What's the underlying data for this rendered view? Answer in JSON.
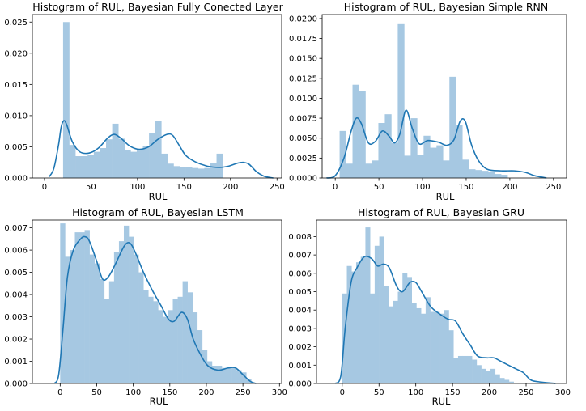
{
  "figure": {
    "bar_color": "#a6c8e2",
    "kde_color": "#1f77b4"
  },
  "chart_data": [
    {
      "type": "bar",
      "title": "Histogram of RUL, Bayesian Fully Conected Layer",
      "xlabel": "RUL",
      "ylabel": "",
      "xlim": [
        -13,
        255
      ],
      "ylim": [
        0,
        0.0262
      ],
      "xticks": [
        0,
        50,
        100,
        150,
        200,
        250
      ],
      "yticks": [
        0.0,
        0.005,
        0.01,
        0.015,
        0.02,
        0.025
      ],
      "ytick_labels": [
        "0.000",
        "0.005",
        "0.010",
        "0.015",
        "0.020",
        "0.025"
      ],
      "bin_start": 20,
      "bin_width": 6.6,
      "values": [
        0.025,
        0.0053,
        0.0035,
        0.0035,
        0.0037,
        0.0042,
        0.0048,
        0.0062,
        0.0087,
        0.0063,
        0.0045,
        0.0042,
        0.0045,
        0.0051,
        0.0072,
        0.0091,
        0.0039,
        0.0023,
        0.0019,
        0.0018,
        0.0017,
        0.0016,
        0.0015,
        0.0016,
        0.0024,
        0.0039
      ],
      "kde": [
        [
          5,
          0.0002
        ],
        [
          10,
          0.0015
        ],
        [
          15,
          0.0052
        ],
        [
          18,
          0.0082
        ],
        [
          21,
          0.0092
        ],
        [
          24,
          0.0085
        ],
        [
          30,
          0.0058
        ],
        [
          38,
          0.0042
        ],
        [
          48,
          0.004
        ],
        [
          58,
          0.0048
        ],
        [
          68,
          0.0064
        ],
        [
          75,
          0.007
        ],
        [
          82,
          0.0064
        ],
        [
          92,
          0.0051
        ],
        [
          102,
          0.0046
        ],
        [
          112,
          0.005
        ],
        [
          122,
          0.0062
        ],
        [
          132,
          0.007
        ],
        [
          138,
          0.0068
        ],
        [
          145,
          0.0052
        ],
        [
          152,
          0.0036
        ],
        [
          162,
          0.0026
        ],
        [
          175,
          0.0019
        ],
        [
          188,
          0.0017
        ],
        [
          198,
          0.0019
        ],
        [
          208,
          0.0024
        ],
        [
          214,
          0.0025
        ],
        [
          220,
          0.0022
        ],
        [
          228,
          0.001
        ],
        [
          236,
          0.0003
        ],
        [
          246,
          0.0
        ]
      ]
    },
    {
      "type": "bar",
      "title": "Histogram of RUL, Bayesian Simple RNN",
      "xlabel": "RUL",
      "ylabel": "",
      "xlim": [
        -15,
        265
      ],
      "ylim": [
        0,
        0.0205
      ],
      "xticks": [
        0,
        50,
        100,
        150,
        200,
        250
      ],
      "yticks": [
        0.0,
        0.0025,
        0.005,
        0.0075,
        0.01,
        0.0125,
        0.015,
        0.0175,
        0.02
      ],
      "ytick_labels": [
        "0.0000",
        "0.0025",
        "0.0050",
        "0.0075",
        "0.0100",
        "0.0125",
        "0.0150",
        "0.0175",
        "0.0200"
      ],
      "bin_start": 5,
      "bin_width": 7.4,
      "values": [
        0.0059,
        0.0018,
        0.0117,
        0.0109,
        0.0018,
        0.0022,
        0.0069,
        0.008,
        0.0044,
        0.0193,
        0.0028,
        0.0075,
        0.0029,
        0.0053,
        0.0038,
        0.0041,
        0.0022,
        0.0127,
        0.0066,
        0.0023,
        0.0011,
        0.001,
        0.0009,
        0.0008,
        0.0005,
        0.0004,
        0.0
      ],
      "kde": [
        [
          -10,
          0.0
        ],
        [
          0,
          0.0003
        ],
        [
          10,
          0.0025
        ],
        [
          18,
          0.0058
        ],
        [
          24,
          0.0075
        ],
        [
          30,
          0.0068
        ],
        [
          38,
          0.0044
        ],
        [
          46,
          0.0046
        ],
        [
          54,
          0.0059
        ],
        [
          62,
          0.0052
        ],
        [
          68,
          0.0044
        ],
        [
          74,
          0.0055
        ],
        [
          81,
          0.0085
        ],
        [
          88,
          0.0063
        ],
        [
          96,
          0.0043
        ],
        [
          106,
          0.0047
        ],
        [
          118,
          0.0045
        ],
        [
          128,
          0.0041
        ],
        [
          136,
          0.0048
        ],
        [
          143,
          0.0071
        ],
        [
          149,
          0.0071
        ],
        [
          156,
          0.0042
        ],
        [
          164,
          0.0022
        ],
        [
          174,
          0.0011
        ],
        [
          190,
          0.0009
        ],
        [
          205,
          0.0009
        ],
        [
          218,
          0.0007
        ],
        [
          228,
          0.0003
        ],
        [
          242,
          0.0
        ]
      ]
    },
    {
      "type": "bar",
      "title": "Histogram of RUL, Bayesian LSTM",
      "xlabel": "RUL",
      "ylabel": "",
      "xlim": [
        -38,
        303
      ],
      "ylim": [
        0,
        0.00735
      ],
      "xticks": [
        0,
        50,
        100,
        150,
        200,
        250,
        300
      ],
      "yticks": [
        0.0,
        0.001,
        0.002,
        0.003,
        0.004,
        0.005,
        0.006,
        0.007
      ],
      "ytick_labels": [
        "0.000",
        "0.001",
        "0.002",
        "0.003",
        "0.004",
        "0.005",
        "0.006",
        "0.007"
      ],
      "bin_start": 0,
      "bin_width": 6.7,
      "values": [
        0.0072,
        0.0057,
        0.006,
        0.0068,
        0.0068,
        0.0069,
        0.0058,
        0.0054,
        0.0047,
        0.0038,
        0.0046,
        0.0059,
        0.0064,
        0.0071,
        0.0066,
        0.0058,
        0.005,
        0.0042,
        0.0039,
        0.0037,
        0.0033,
        0.003,
        0.0033,
        0.0038,
        0.0039,
        0.0046,
        0.0041,
        0.0032,
        0.0024,
        0.0015,
        0.001,
        0.0008,
        0.0008,
        0.0007,
        0.0007,
        0.0007,
        0.0006,
        0.0005,
        0.0002
      ],
      "kde": [
        [
          -8,
          0.0
        ],
        [
          -2,
          0.0004
        ],
        [
          4,
          0.0025
        ],
        [
          10,
          0.0048
        ],
        [
          18,
          0.006
        ],
        [
          28,
          0.0065
        ],
        [
          34,
          0.0066
        ],
        [
          40,
          0.0064
        ],
        [
          50,
          0.0055
        ],
        [
          58,
          0.0047
        ],
        [
          66,
          0.0048
        ],
        [
          76,
          0.0054
        ],
        [
          88,
          0.0062
        ],
        [
          96,
          0.0063
        ],
        [
          104,
          0.0058
        ],
        [
          114,
          0.005
        ],
        [
          126,
          0.0042
        ],
        [
          138,
          0.0035
        ],
        [
          148,
          0.0029
        ],
        [
          156,
          0.0028
        ],
        [
          166,
          0.0032
        ],
        [
          174,
          0.0029
        ],
        [
          182,
          0.002
        ],
        [
          192,
          0.0013
        ],
        [
          202,
          0.0008
        ],
        [
          216,
          0.0006
        ],
        [
          230,
          0.0007
        ],
        [
          240,
          0.0007
        ],
        [
          250,
          0.0004
        ],
        [
          260,
          0.0001
        ],
        [
          268,
          0.0
        ]
      ]
    },
    {
      "type": "bar",
      "title": "Histogram of RUL, Bayesian GRU",
      "xlabel": "RUL",
      "ylabel": "",
      "xlim": [
        -35,
        305
      ],
      "ylim": [
        0,
        0.0089
      ],
      "xticks": [
        0,
        50,
        100,
        150,
        200,
        250,
        300
      ],
      "yticks": [
        0.0,
        0.001,
        0.002,
        0.003,
        0.004,
        0.005,
        0.006,
        0.007,
        0.008
      ],
      "ytick_labels": [
        "0.000",
        "0.001",
        "0.002",
        "0.003",
        "0.004",
        "0.005",
        "0.006",
        "0.007",
        "0.008"
      ],
      "bin_start": 0,
      "bin_width": 6.3,
      "values": [
        0.0049,
        0.0064,
        0.0061,
        0.0066,
        0.0069,
        0.0085,
        0.0049,
        0.0075,
        0.008,
        0.0053,
        0.0042,
        0.0045,
        0.005,
        0.006,
        0.0058,
        0.0044,
        0.0041,
        0.0038,
        0.0047,
        0.0039,
        0.0039,
        0.0038,
        0.004,
        0.0029,
        0.0014,
        0.0015,
        0.0015,
        0.0015,
        0.0013,
        0.001,
        0.0008,
        0.0007,
        0.0008,
        0.0005,
        0.0003,
        0.0002,
        0.0001
      ],
      "kde": [
        [
          -10,
          0.0
        ],
        [
          -2,
          0.0004
        ],
        [
          4,
          0.003
        ],
        [
          12,
          0.0055
        ],
        [
          20,
          0.0063
        ],
        [
          30,
          0.0069
        ],
        [
          40,
          0.0068
        ],
        [
          48,
          0.0064
        ],
        [
          56,
          0.0065
        ],
        [
          64,
          0.0063
        ],
        [
          74,
          0.0053
        ],
        [
          82,
          0.005
        ],
        [
          92,
          0.0055
        ],
        [
          100,
          0.0055
        ],
        [
          108,
          0.005
        ],
        [
          120,
          0.0042
        ],
        [
          132,
          0.0038
        ],
        [
          144,
          0.0035
        ],
        [
          154,
          0.0034
        ],
        [
          164,
          0.0027
        ],
        [
          174,
          0.0021
        ],
        [
          184,
          0.0015
        ],
        [
          196,
          0.0014
        ],
        [
          206,
          0.0014
        ],
        [
          216,
          0.0012
        ],
        [
          226,
          0.001
        ],
        [
          236,
          0.0008
        ],
        [
          246,
          0.0006
        ],
        [
          256,
          0.0002
        ],
        [
          266,
          0.0001
        ],
        [
          290,
          0.0
        ]
      ]
    }
  ]
}
